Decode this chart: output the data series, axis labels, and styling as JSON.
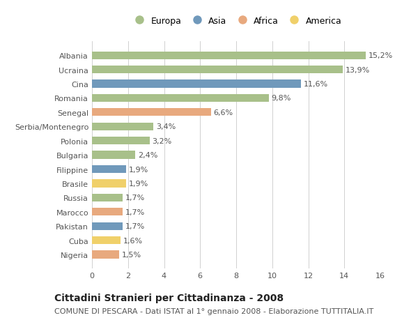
{
  "countries": [
    "Albania",
    "Ucraina",
    "Cina",
    "Romania",
    "Senegal",
    "Serbia/Montenegro",
    "Polonia",
    "Bulgaria",
    "Filippine",
    "Brasile",
    "Russia",
    "Marocco",
    "Pakistan",
    "Cuba",
    "Nigeria"
  ],
  "values": [
    15.2,
    13.9,
    11.6,
    9.8,
    6.6,
    3.4,
    3.2,
    2.4,
    1.9,
    1.9,
    1.7,
    1.7,
    1.7,
    1.6,
    1.5
  ],
  "labels": [
    "15,2%",
    "13,9%",
    "11,6%",
    "9,8%",
    "6,6%",
    "3,4%",
    "3,2%",
    "2,4%",
    "1,9%",
    "1,9%",
    "1,7%",
    "1,7%",
    "1,7%",
    "1,6%",
    "1,5%"
  ],
  "continents": [
    "Europa",
    "Europa",
    "Asia",
    "Europa",
    "Africa",
    "Europa",
    "Europa",
    "Europa",
    "Asia",
    "America",
    "Europa",
    "Africa",
    "Asia",
    "America",
    "Africa"
  ],
  "colors": {
    "Europa": "#a8c08a",
    "Asia": "#7099bb",
    "Africa": "#e8a97e",
    "America": "#f0d06a"
  },
  "xlim": [
    0,
    16
  ],
  "xticks": [
    0,
    2,
    4,
    6,
    8,
    10,
    12,
    14,
    16
  ],
  "title": "Cittadini Stranieri per Cittadinanza - 2008",
  "subtitle": "COMUNE DI PESCARA - Dati ISTAT al 1° gennaio 2008 - Elaborazione TUTTITALIA.IT",
  "background_color": "#ffffff",
  "grid_color": "#d0d0d0",
  "bar_height": 0.55,
  "title_fontsize": 10,
  "subtitle_fontsize": 8,
  "label_fontsize": 8,
  "tick_fontsize": 8,
  "legend_fontsize": 9
}
